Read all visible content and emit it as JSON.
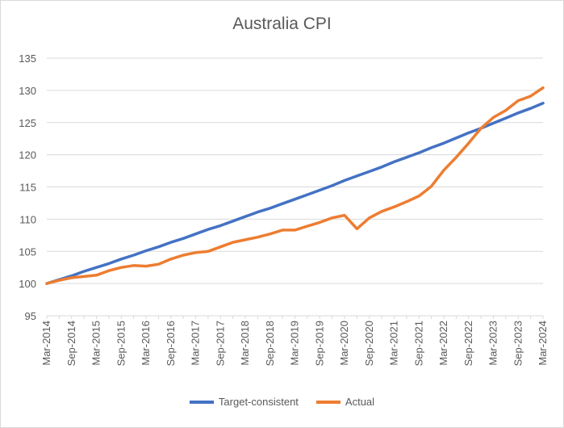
{
  "chart_data": {
    "type": "line",
    "title": "Australia CPI",
    "xlabel": "",
    "ylabel": "",
    "ylim": [
      95,
      135
    ],
    "yticks": [
      95,
      100,
      105,
      110,
      115,
      120,
      125,
      130,
      135
    ],
    "grid": true,
    "legend_position": "bottom",
    "x": [
      "Mar-2014",
      "Jun-2014",
      "Sep-2014",
      "Dec-2014",
      "Mar-2015",
      "Jun-2015",
      "Sep-2015",
      "Dec-2015",
      "Mar-2016",
      "Jun-2016",
      "Sep-2016",
      "Dec-2016",
      "Mar-2017",
      "Jun-2017",
      "Sep-2017",
      "Dec-2017",
      "Mar-2018",
      "Jun-2018",
      "Sep-2018",
      "Dec-2018",
      "Mar-2019",
      "Jun-2019",
      "Sep-2019",
      "Dec-2019",
      "Mar-2020",
      "Jun-2020",
      "Sep-2020",
      "Dec-2020",
      "Mar-2021",
      "Jun-2021",
      "Sep-2021",
      "Dec-2021",
      "Mar-2022",
      "Jun-2022",
      "Sep-2022",
      "Dec-2022",
      "Mar-2023",
      "Jun-2023",
      "Sep-2023",
      "Dec-2023",
      "Mar-2024"
    ],
    "xtick_labels": [
      "Mar-2014",
      "Sep-2014",
      "Mar-2015",
      "Sep-2015",
      "Mar-2016",
      "Sep-2016",
      "Mar-2017",
      "Sep-2017",
      "Mar-2018",
      "Sep-2018",
      "Mar-2019",
      "Sep-2019",
      "Mar-2020",
      "Sep-2020",
      "Mar-2021",
      "Sep-2021",
      "Mar-2022",
      "Sep-2022",
      "Mar-2023",
      "Sep-2023",
      "Mar-2024"
    ],
    "series": [
      {
        "name": "Target-consistent",
        "color": "#4472c4",
        "values": [
          100.0,
          100.6,
          101.2,
          101.9,
          102.5,
          103.1,
          103.8,
          104.4,
          105.1,
          105.7,
          106.4,
          107.0,
          107.7,
          108.4,
          109.0,
          109.7,
          110.4,
          111.1,
          111.7,
          112.4,
          113.1,
          113.8,
          114.5,
          115.2,
          116.0,
          116.7,
          117.4,
          118.1,
          118.9,
          119.6,
          120.3,
          121.1,
          121.8,
          122.6,
          123.4,
          124.1,
          124.9,
          125.7,
          126.5,
          127.2,
          128.0
        ]
      },
      {
        "name": "Actual",
        "color": "#ed7d31",
        "values": [
          100.0,
          100.5,
          100.9,
          101.1,
          101.3,
          102.0,
          102.5,
          102.8,
          102.7,
          103.0,
          103.8,
          104.4,
          104.8,
          105.0,
          105.7,
          106.4,
          106.8,
          107.2,
          107.7,
          108.3,
          108.3,
          108.9,
          109.5,
          110.2,
          110.6,
          108.5,
          110.2,
          111.2,
          111.9,
          112.7,
          113.6,
          115.1,
          117.6,
          119.6,
          121.8,
          124.1,
          125.8,
          126.9,
          128.4,
          129.1,
          130.4
        ]
      }
    ]
  }
}
